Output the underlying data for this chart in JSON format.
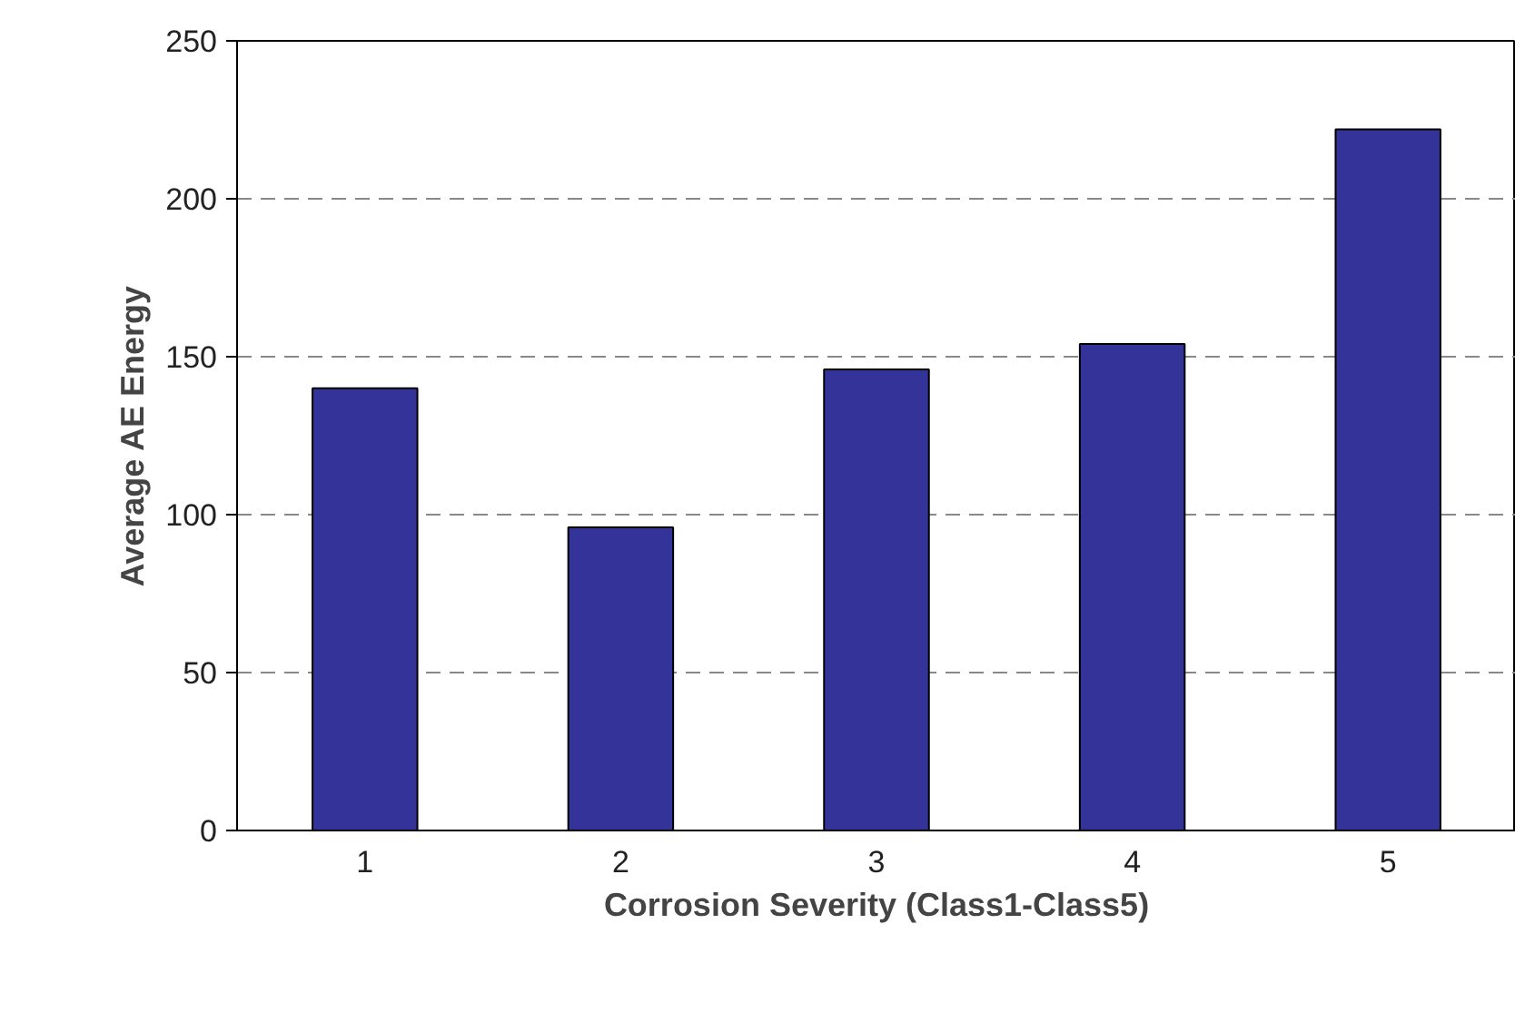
{
  "chart_data": {
    "type": "bar",
    "xlabel": "Corrosion Severity (Class1-Class5)",
    "ylabel": "Average AE Energy",
    "categories": [
      "1",
      "2",
      "3",
      "4",
      "5"
    ],
    "values": [
      140,
      96,
      146,
      154,
      222
    ],
    "color": "#333399",
    "ylim": [
      0,
      250
    ],
    "yticks": [
      0,
      50,
      100,
      150,
      200,
      250
    ],
    "grid": "y"
  }
}
